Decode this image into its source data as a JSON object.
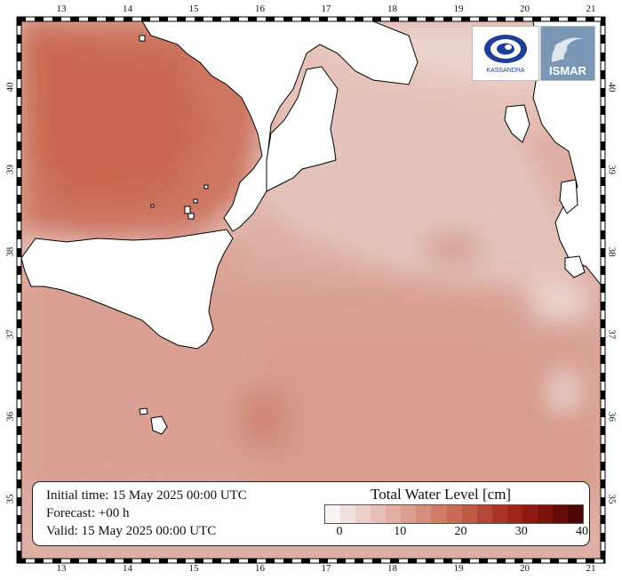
{
  "map": {
    "lon_ticks": [
      "13",
      "14",
      "15",
      "16",
      "17",
      "18",
      "19",
      "20",
      "21"
    ],
    "lat_ticks": [
      "35",
      "36",
      "37",
      "38",
      "39",
      "40"
    ],
    "field_color_ramp": [
      "#f7f4f3",
      "#f0e0dc",
      "#ebd0c9",
      "#e6c0b6",
      "#e1b0a3",
      "#dc9f8f",
      "#d68e7c",
      "#d07c69",
      "#c86b57",
      "#bf5a45",
      "#b44735",
      "#a93526",
      "#9e2519",
      "#901a12",
      "#7d120d",
      "#650c0a",
      "#4e0806"
    ]
  },
  "info": {
    "initial": "Initial time: 15 May 2025 00:00 UTC",
    "forecast": "Forecast: +00 h",
    "valid": "Valid: 15 May 2025 00:00 UTC"
  },
  "legend": {
    "title": "Total Water Level [cm]",
    "tick_labels": [
      "0",
      "10",
      "20",
      "30",
      "40"
    ],
    "colors": [
      "#f7f4f3",
      "#f0e0dc",
      "#ebd0c9",
      "#e6c0b6",
      "#e1b0a3",
      "#dc9f8f",
      "#d68e7c",
      "#d07c69",
      "#c86b57",
      "#bf5a45",
      "#b44735",
      "#a93526",
      "#9e2519",
      "#901a12",
      "#7d120d",
      "#650c0a",
      "#4e0806"
    ]
  },
  "logos": {
    "kassandra": "KASSANDRA",
    "ismar": "ISMAR"
  }
}
